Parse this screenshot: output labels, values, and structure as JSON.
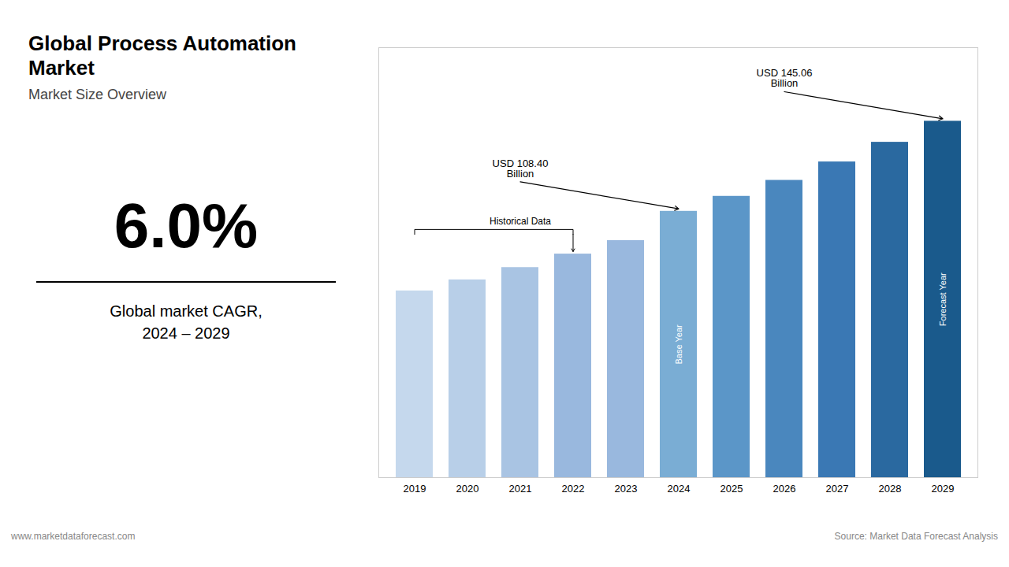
{
  "chart_data": {
    "type": "bar",
    "title": "Global Process Automation Market",
    "subtitle": "Market Size Overview",
    "cagr": "6.0%",
    "cagr_label": "Global market CAGR,\n2024 – 2029",
    "categories": [
      "2019",
      "2020",
      "2021",
      "2022",
      "2023",
      "2024",
      "2025",
      "2026",
      "2027",
      "2028",
      "2029"
    ],
    "values": [
      76.0,
      80.5,
      85.5,
      91.0,
      96.5,
      108.4,
      114.5,
      121.0,
      128.5,
      136.5,
      145.06
    ],
    "colors": [
      "#c5d8ed",
      "#b8cfe8",
      "#a9c4e3",
      "#99b8de",
      "#99b8de",
      "#7aadd4",
      "#5b96c8",
      "#4a87be",
      "#3a78b4",
      "#2a69a0",
      "#1a5a8c"
    ],
    "ylim": [
      0,
      175
    ],
    "tick_labels": "x",
    "grid": false,
    "bar_labels": [
      {
        "x": "2024",
        "text": "Base Year"
      },
      {
        "x": "2029",
        "text": "Forecast Year"
      }
    ],
    "annotations": [
      {
        "x": [
          "2019",
          "2022"
        ],
        "text": "Historical Data"
      },
      {
        "x": "2024",
        "text": "USD 108.40\nBillion"
      },
      {
        "x": "2029",
        "text": "USD 145.06\nBillion"
      }
    ],
    "footer": [
      "www.marketdataforecast.com",
      "Source: Market Data Forecast Analysis"
    ]
  }
}
